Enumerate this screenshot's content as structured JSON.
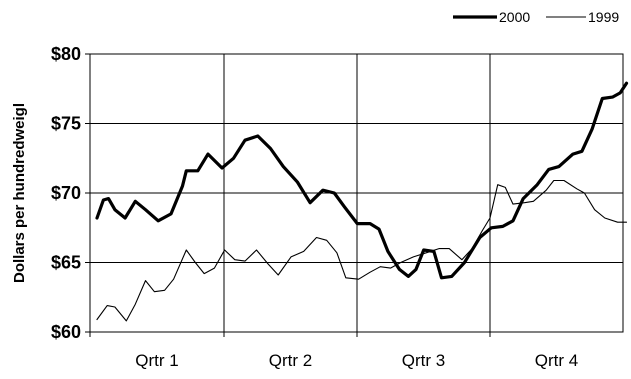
{
  "chart_data": {
    "type": "line",
    "ylabel": "Dollars per hundredweigl",
    "ylim": [
      60,
      80
    ],
    "y_ticks": [
      "$60",
      "$65",
      "$70",
      "$75",
      "$80"
    ],
    "x_categories": [
      "Qrtr 1",
      "Qrtr 2",
      "Qrtr 3",
      "Qrtr 4"
    ],
    "xlim": [
      0,
      4
    ],
    "grid": true,
    "legend_position": "top-right",
    "series": [
      {
        "name": "2000",
        "color": "#000000",
        "weight": "thick",
        "points": [
          [
            0.0,
            68.2
          ],
          [
            0.05,
            69.5
          ],
          [
            0.09,
            69.6
          ],
          [
            0.14,
            68.8
          ],
          [
            0.22,
            68.2
          ],
          [
            0.3,
            69.4
          ],
          [
            0.38,
            68.8
          ],
          [
            0.48,
            68.0
          ],
          [
            0.58,
            68.5
          ],
          [
            0.67,
            70.5
          ],
          [
            0.7,
            71.6
          ],
          [
            0.79,
            71.6
          ],
          [
            0.87,
            72.8
          ],
          [
            0.98,
            71.8
          ],
          [
            1.07,
            72.5
          ],
          [
            1.16,
            73.8
          ],
          [
            1.26,
            74.1
          ],
          [
            1.36,
            73.2
          ],
          [
            1.46,
            71.9
          ],
          [
            1.57,
            70.8
          ],
          [
            1.67,
            69.3
          ],
          [
            1.77,
            70.2
          ],
          [
            1.86,
            70.0
          ],
          [
            1.94,
            69.0
          ],
          [
            2.04,
            67.8
          ],
          [
            2.14,
            67.8
          ],
          [
            2.21,
            67.4
          ],
          [
            2.28,
            65.8
          ],
          [
            2.37,
            64.5
          ],
          [
            2.44,
            64.0
          ],
          [
            2.5,
            64.5
          ],
          [
            2.56,
            65.9
          ],
          [
            2.64,
            65.8
          ],
          [
            2.7,
            63.9
          ],
          [
            2.78,
            64.0
          ],
          [
            2.88,
            65.0
          ],
          [
            3.0,
            66.8
          ],
          [
            3.09,
            67.5
          ],
          [
            3.18,
            67.6
          ],
          [
            3.26,
            68.0
          ],
          [
            3.34,
            69.6
          ],
          [
            3.45,
            70.6
          ],
          [
            3.54,
            71.7
          ],
          [
            3.62,
            71.9
          ],
          [
            3.73,
            72.8
          ],
          [
            3.8,
            73.0
          ],
          [
            3.88,
            74.6
          ],
          [
            3.96,
            76.8
          ],
          [
            4.04,
            76.9
          ],
          [
            4.1,
            77.2
          ],
          [
            4.15,
            77.9
          ]
        ]
      },
      {
        "name": "1999",
        "color": "#000000",
        "weight": "thin",
        "points": [
          [
            0.0,
            60.9
          ],
          [
            0.08,
            61.9
          ],
          [
            0.14,
            61.8
          ],
          [
            0.23,
            60.8
          ],
          [
            0.3,
            62.0
          ],
          [
            0.38,
            63.7
          ],
          [
            0.45,
            62.9
          ],
          [
            0.53,
            63.0
          ],
          [
            0.6,
            63.8
          ],
          [
            0.7,
            65.9
          ],
          [
            0.77,
            65.0
          ],
          [
            0.84,
            64.2
          ],
          [
            0.92,
            64.6
          ],
          [
            1.0,
            65.9
          ],
          [
            1.08,
            65.2
          ],
          [
            1.16,
            65.1
          ],
          [
            1.25,
            65.9
          ],
          [
            1.34,
            64.9
          ],
          [
            1.42,
            64.1
          ],
          [
            1.52,
            65.4
          ],
          [
            1.62,
            65.8
          ],
          [
            1.72,
            66.8
          ],
          [
            1.8,
            66.6
          ],
          [
            1.88,
            65.7
          ],
          [
            1.95,
            63.9
          ],
          [
            2.05,
            63.8
          ],
          [
            2.14,
            64.3
          ],
          [
            2.22,
            64.7
          ],
          [
            2.3,
            64.6
          ],
          [
            2.38,
            65.0
          ],
          [
            2.48,
            65.4
          ],
          [
            2.58,
            65.7
          ],
          [
            2.68,
            66.0
          ],
          [
            2.76,
            66.0
          ],
          [
            2.86,
            65.2
          ],
          [
            2.94,
            66.0
          ],
          [
            3.02,
            67.3
          ],
          [
            3.08,
            68.2
          ],
          [
            3.14,
            70.6
          ],
          [
            3.2,
            70.4
          ],
          [
            3.26,
            69.2
          ],
          [
            3.35,
            69.3
          ],
          [
            3.42,
            69.4
          ],
          [
            3.52,
            70.2
          ],
          [
            3.58,
            70.9
          ],
          [
            3.66,
            70.9
          ],
          [
            3.76,
            70.3
          ],
          [
            3.82,
            70.0
          ],
          [
            3.9,
            68.8
          ],
          [
            3.98,
            68.2
          ],
          [
            4.08,
            67.9
          ],
          [
            4.15,
            67.9
          ]
        ]
      }
    ]
  }
}
